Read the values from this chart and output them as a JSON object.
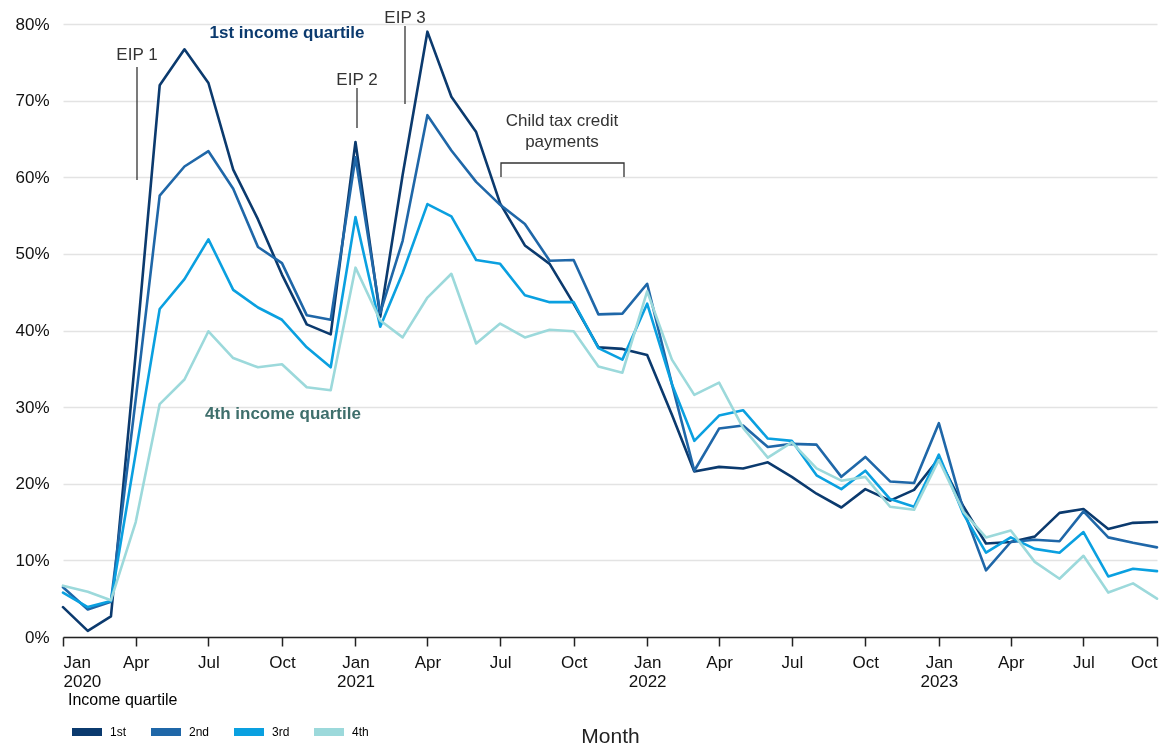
{
  "chart_data": {
    "type": "line",
    "xlabel": "Month",
    "legend_title": "Income quartile",
    "legend": "bottom left",
    "grid": "y",
    "line_style": "solid",
    "x": [
      "2020-01",
      "2020-02",
      "2020-03",
      "2020-04",
      "2020-05",
      "2020-06",
      "2020-07",
      "2020-08",
      "2020-09",
      "2020-10",
      "2020-11",
      "2020-12",
      "2021-01",
      "2021-02",
      "2021-03",
      "2021-04",
      "2021-05",
      "2021-06",
      "2021-07",
      "2021-08",
      "2021-09",
      "2021-10",
      "2021-11",
      "2021-12",
      "2022-01",
      "2022-02",
      "2022-03",
      "2022-04",
      "2022-05",
      "2022-06",
      "2022-07",
      "2022-08",
      "2022-09",
      "2022-10",
      "2022-11",
      "2022-12",
      "2023-01",
      "2023-02",
      "2023-03",
      "2023-04",
      "2023-05",
      "2023-06",
      "2023-07",
      "2023-08",
      "2023-09",
      "2023-10"
    ],
    "series": [
      {
        "name": "1st",
        "color": "#0b3a6e",
        "values": [
          3.9,
          0.8,
          2.7,
          37,
          72,
          76.7,
          72.3,
          61,
          54.5,
          47.3,
          40.8,
          39.5,
          64.6,
          41.8,
          60.3,
          79,
          70.5,
          65.9,
          56.6,
          51.1,
          48.7,
          43.5,
          37.8,
          37.6,
          36.8,
          29,
          21.6,
          22.2,
          22,
          22.8,
          20.9,
          18.7,
          16.9,
          19.3,
          17.8,
          19.2,
          23.3,
          17,
          12.2,
          12.4,
          13.1,
          16.2,
          16.7,
          14.1,
          14.9,
          15
        ]
      },
      {
        "name": "2nd",
        "color": "#1f67a8",
        "values": [
          6.5,
          3.6,
          4.6,
          31,
          57.6,
          61.4,
          63.4,
          58.5,
          50.9,
          48.8,
          42,
          41.4,
          62.6,
          42.3,
          51.7,
          68.1,
          63.5,
          59.4,
          56.4,
          53.9,
          49.1,
          49.2,
          42.1,
          42.2,
          46.1,
          33,
          21.7,
          27.2,
          27.6,
          24.8,
          25.2,
          25.1,
          20.9,
          23.5,
          20.3,
          20.1,
          27.9,
          16.5,
          8.7,
          12.4,
          12.7,
          12.5,
          16.4,
          13,
          12.3,
          11.7
        ]
      },
      {
        "name": "3rd",
        "color": "#0aa0e0",
        "values": [
          5.8,
          3.9,
          4.7,
          24,
          42.8,
          46.7,
          51.9,
          45.3,
          43,
          41.4,
          37.8,
          35.2,
          54.8,
          40.5,
          47.5,
          56.5,
          54.9,
          49.2,
          48.7,
          44.6,
          43.7,
          43.7,
          37.7,
          36.2,
          43.5,
          33,
          25.6,
          28.9,
          29.6,
          25.9,
          25.6,
          21.1,
          19.3,
          21.7,
          18,
          17,
          23.8,
          16,
          11,
          13,
          11.5,
          11,
          13.7,
          7.9,
          8.9,
          8.6
        ]
      },
      {
        "name": "4th",
        "color": "#9cd9db",
        "values": [
          6.7,
          5.9,
          4.8,
          15,
          30.4,
          33.6,
          39.9,
          36.4,
          35.2,
          35.6,
          32.6,
          32.2,
          48.2,
          41.3,
          39.1,
          44.3,
          47.4,
          38.3,
          40.9,
          39.1,
          40.1,
          39.9,
          35.3,
          34.5,
          45.1,
          36.2,
          31.6,
          33.2,
          27.3,
          23.4,
          25.4,
          22,
          20.4,
          20.9,
          17,
          16.6,
          23.1,
          16.3,
          13,
          13.9,
          9.8,
          7.6,
          10.6,
          5.8,
          7,
          5
        ]
      }
    ],
    "xlim": [
      "2020-01",
      "2023-10"
    ],
    "xticks": [
      {
        "value": "2020-01",
        "label": "Jan 2020"
      },
      {
        "value": "2020-04",
        "label": "Apr"
      },
      {
        "value": "2020-07",
        "label": "Jul"
      },
      {
        "value": "2020-10",
        "label": "Oct"
      },
      {
        "value": "2021-01",
        "label": "Jan 2021"
      },
      {
        "value": "2021-04",
        "label": "Apr"
      },
      {
        "value": "2021-07",
        "label": "Jul"
      },
      {
        "value": "2021-10",
        "label": "Oct"
      },
      {
        "value": "2022-01",
        "label": "Jan 2022"
      },
      {
        "value": "2022-04",
        "label": "Apr"
      },
      {
        "value": "2022-07",
        "label": "Jul"
      },
      {
        "value": "2022-10",
        "label": "Oct"
      },
      {
        "value": "2023-01",
        "label": "Jan 2023"
      },
      {
        "value": "2023-04",
        "label": "Apr"
      },
      {
        "value": "2023-07",
        "label": "Jul"
      },
      {
        "value": "2023-10",
        "label": "Oct"
      }
    ],
    "ylim": [
      0,
      80
    ],
    "yticks": [
      {
        "value": 0,
        "label": "0%"
      },
      {
        "value": 10,
        "label": "10%"
      },
      {
        "value": 20,
        "label": "20%"
      },
      {
        "value": 30,
        "label": "30%"
      },
      {
        "value": 40,
        "label": "40%"
      },
      {
        "value": 50,
        "label": "50%"
      },
      {
        "value": 60,
        "label": "60%"
      },
      {
        "value": 70,
        "label": "70%"
      },
      {
        "value": 80,
        "label": "80%"
      }
    ],
    "annotations": [
      "EIP 1",
      "EIP 2",
      "EIP 3",
      "1st income quartile",
      "4th income quartile",
      "Child tax credit payments"
    ]
  }
}
